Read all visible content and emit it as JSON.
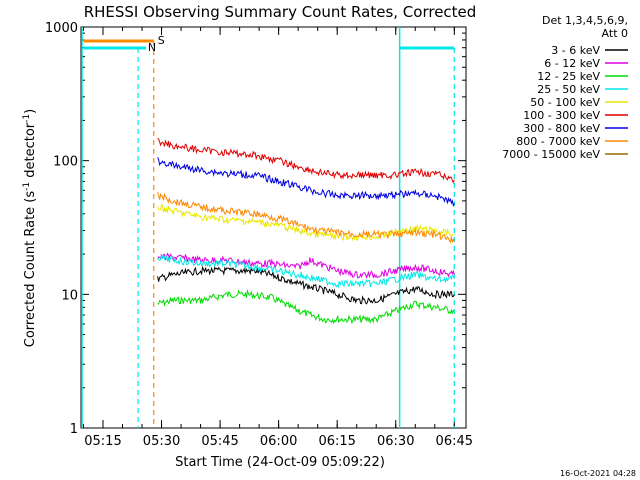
{
  "chart_data": {
    "type": "line",
    "title": "RHESSI Observing Summary Count Rates, Corrected",
    "xlabel": "Start Time (24-Oct-09 05:09:22)",
    "ylabel_parts": [
      "Corrected Count Rate (s",
      "-1",
      " detector",
      "-1",
      ")"
    ],
    "ylabel": "Corrected Count Rate (s-1 detector-1)",
    "yscale": "log",
    "ylim": [
      1,
      1000
    ],
    "xlim": [
      "05:09:22",
      "06:48:00"
    ],
    "x_ticks": [
      "05:15",
      "05:30",
      "05:45",
      "06:00",
      "06:15",
      "06:30",
      "06:45"
    ],
    "y_ticks": [
      "1",
      "10",
      "100",
      "1000"
    ],
    "legend_header": [
      "Det 1,3,4,5,6,9,",
      "Att 0"
    ],
    "legend_position": "right",
    "series": [
      {
        "name": "3 - 6 keV",
        "color": "#000000",
        "x": [
          "05:29",
          "05:33",
          "05:40",
          "05:47",
          "05:54",
          "05:58",
          "06:05",
          "06:10",
          "06:15",
          "06:20",
          "06:25",
          "06:30",
          "06:35",
          "06:40",
          "06:45"
        ],
        "y": [
          13,
          14,
          15,
          15,
          15,
          14,
          12,
          11,
          10,
          9,
          9,
          10,
          11,
          10,
          10
        ]
      },
      {
        "name": "6 - 12 keV",
        "color": "#e000e0",
        "x": [
          "05:29",
          "05:33",
          "05:40",
          "05:47",
          "05:54",
          "05:58",
          "06:05",
          "06:08",
          "06:15",
          "06:20",
          "06:25",
          "06:30",
          "06:35",
          "06:40",
          "06:45"
        ],
        "y": [
          19,
          19,
          18,
          18,
          17,
          17,
          16,
          18,
          15,
          14,
          14,
          15,
          16,
          15,
          14
        ]
      },
      {
        "name": "12 - 25 keV",
        "color": "#00dd00",
        "x": [
          "05:29",
          "05:33",
          "05:40",
          "05:47",
          "05:52",
          "05:58",
          "06:03",
          "06:08",
          "06:12",
          "06:18",
          "06:25",
          "06:30",
          "06:35",
          "06:40",
          "06:45"
        ],
        "y": [
          8.5,
          9,
          9,
          10,
          10,
          9.5,
          8,
          7,
          6.5,
          6.5,
          6.5,
          7.5,
          8.5,
          8,
          7.5
        ]
      },
      {
        "name": "25 - 50 keV",
        "color": "#00e8e8",
        "x": [
          "05:29",
          "05:33",
          "05:40",
          "05:47",
          "05:54",
          "06:00",
          "06:05",
          "06:10",
          "06:15",
          "06:20",
          "06:25",
          "06:30",
          "06:35",
          "06:40",
          "06:45"
        ],
        "y": [
          19,
          18,
          17,
          17,
          16,
          15,
          14,
          13,
          12,
          12,
          12,
          13,
          14,
          13,
          13
        ]
      },
      {
        "name": "50 - 100 keV",
        "color": "#e8e800",
        "x": [
          "05:29",
          "05:33",
          "05:40",
          "05:47",
          "05:54",
          "06:00",
          "06:05",
          "06:10",
          "06:15",
          "06:20",
          "06:25",
          "06:30",
          "06:35",
          "06:40",
          "06:45"
        ],
        "y": [
          45,
          42,
          38,
          36,
          35,
          33,
          30,
          28,
          27,
          27,
          27,
          29,
          31,
          30,
          28
        ]
      },
      {
        "name": "100 - 300 keV",
        "color": "#e00000",
        "x": [
          "05:29",
          "05:33",
          "05:40",
          "05:47",
          "05:54",
          "06:00",
          "06:05",
          "06:10",
          "06:15",
          "06:20",
          "06:25",
          "06:30",
          "06:35",
          "06:40",
          "06:45"
        ],
        "y": [
          140,
          130,
          120,
          115,
          110,
          100,
          90,
          82,
          78,
          78,
          78,
          78,
          82,
          80,
          72
        ]
      },
      {
        "name": "300 - 800 keV",
        "color": "#0000e0",
        "x": [
          "05:29",
          "05:33",
          "05:40",
          "05:47",
          "05:54",
          "06:00",
          "06:05",
          "06:10",
          "06:15",
          "06:20",
          "06:25",
          "06:30",
          "06:35",
          "06:40",
          "06:45"
        ],
        "y": [
          100,
          92,
          85,
          80,
          78,
          70,
          64,
          58,
          55,
          55,
          55,
          56,
          57,
          55,
          48
        ]
      },
      {
        "name": "800 - 7000 keV",
        "color": "#ff8800",
        "x": [
          "05:29",
          "05:33",
          "05:40",
          "05:47",
          "05:54",
          "06:00",
          "06:05",
          "06:10",
          "06:15",
          "06:20",
          "06:25",
          "06:30",
          "06:35",
          "06:40",
          "06:45"
        ],
        "y": [
          55,
          50,
          45,
          42,
          40,
          37,
          33,
          30,
          29,
          28,
          28,
          28,
          29,
          28,
          25
        ]
      },
      {
        "name": "7000 - 15000 keV",
        "color": "#9a6a00",
        "x": [],
        "y": []
      }
    ],
    "annotations": [
      {
        "text": "S",
        "color": "#ff8800",
        "x": "05:28"
      },
      {
        "text": "N",
        "color": "#00e8e8",
        "x": "05:26"
      }
    ],
    "flag_bars": [
      {
        "color": "#ff8800",
        "x": [
          "05:10",
          "05:28"
        ],
        "dashed_end": "05:28"
      },
      {
        "color": "#00e8e8",
        "x": [
          "05:10",
          "05:26"
        ],
        "dashed_end": "05:24"
      },
      {
        "color": "#00e8e8",
        "x": [
          "06:31",
          "06:45"
        ],
        "dashed_end": "06:45"
      }
    ],
    "grid": false
  },
  "timestamp": "16-Oct-2021 04:28"
}
